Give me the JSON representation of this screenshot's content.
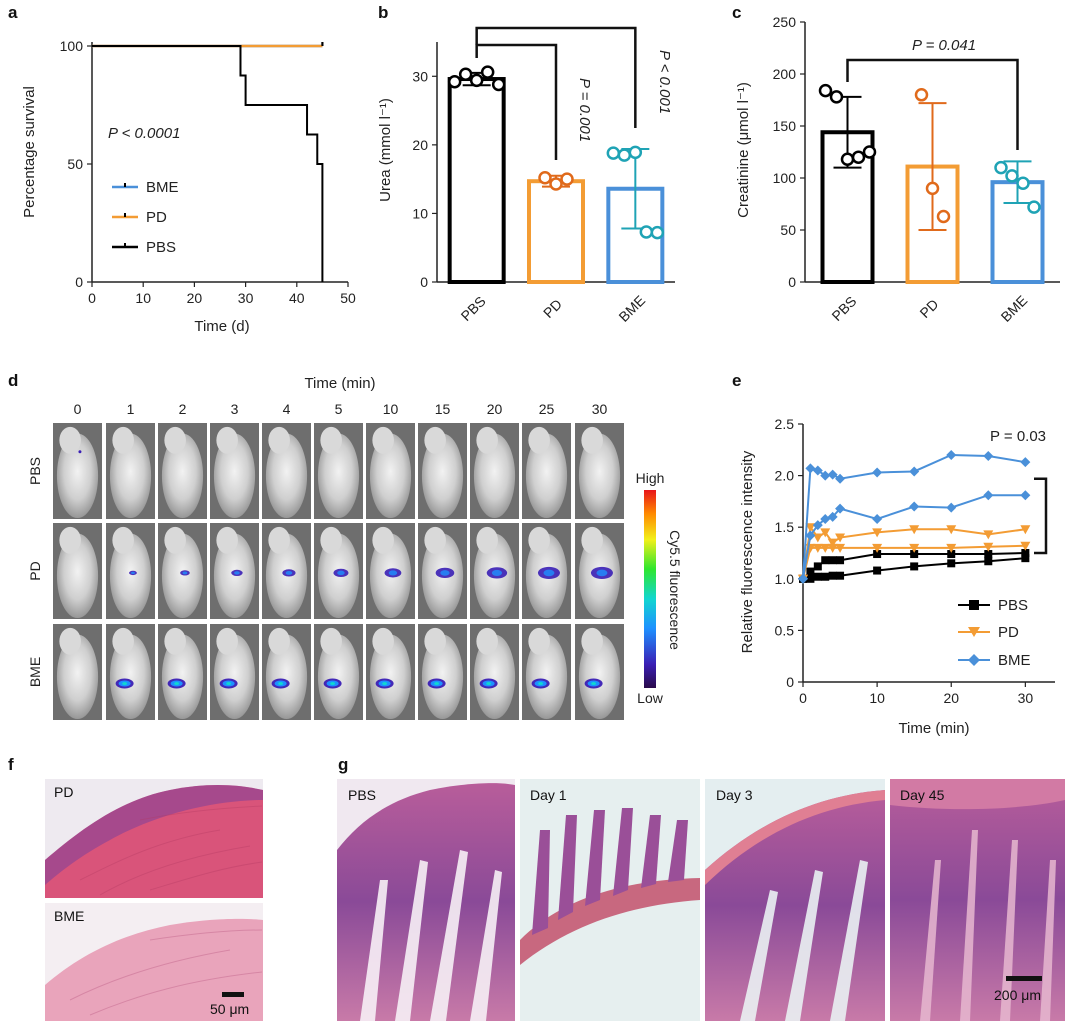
{
  "panels": {
    "a": "a",
    "b": "b",
    "c": "c",
    "d": "d",
    "e": "e",
    "f": "f",
    "g": "g"
  },
  "colors": {
    "PBS": "#000000",
    "PD": "#f39c34",
    "BME": "#4a90d9",
    "BME_dots": "#1fa3b5",
    "PD_dots": "#e06a1b"
  },
  "chart_data": [
    {
      "panel": "a",
      "type": "line",
      "title": "",
      "xlabel": "Time (d)",
      "ylabel": "Percentage survival",
      "xlim": [
        0,
        50
      ],
      "ylim": [
        0,
        100
      ],
      "xticks": [
        "0",
        "10",
        "20",
        "30",
        "40",
        "50"
      ],
      "yticks": [
        "0",
        "50",
        "100"
      ],
      "annotation": "P < 0.0001",
      "legend": [
        "BME",
        "PD",
        "PBS"
      ],
      "series": [
        {
          "name": "BME",
          "x": [
            0,
            45
          ],
          "y": [
            100,
            100
          ],
          "censor_x": 45
        },
        {
          "name": "PD",
          "x": [
            0,
            45
          ],
          "y": [
            100,
            100
          ],
          "censor_x": 45
        },
        {
          "name": "PBS",
          "x": [
            0,
            29,
            29,
            30,
            30,
            42,
            42,
            44,
            44,
            45,
            45
          ],
          "y": [
            100,
            100,
            87.5,
            87.5,
            75,
            75,
            62.5,
            62.5,
            50,
            50,
            0
          ]
        }
      ]
    },
    {
      "panel": "b",
      "type": "bar",
      "title": "",
      "xlabel": "",
      "ylabel": "Urea (mmol l⁻¹)",
      "ylim": [
        0,
        35
      ],
      "yticks": [
        "0",
        "10",
        "20",
        "30"
      ],
      "categories": [
        "PBS",
        "PD",
        "BME"
      ],
      "values": [
        29.6,
        14.7,
        13.6
      ],
      "errors": [
        0.9,
        0.8,
        5.8
      ],
      "points": [
        [
          29.2,
          30.3,
          29.4,
          30.6,
          28.8
        ],
        [
          15.2,
          14.3,
          15.0
        ],
        [
          18.8,
          18.5,
          18.9,
          7.3,
          7.2
        ]
      ],
      "annotations": [
        "P = 0.001",
        "P < 0.001"
      ]
    },
    {
      "panel": "c",
      "type": "bar",
      "title": "",
      "xlabel": "",
      "ylabel": "Creatinine (μmol l⁻¹)",
      "ylim": [
        0,
        250
      ],
      "yticks": [
        "0",
        "50",
        "100",
        "150",
        "200",
        "250"
      ],
      "categories": [
        "PBS",
        "PD",
        "BME"
      ],
      "values": [
        144,
        111,
        96
      ],
      "errors": [
        34,
        61,
        20
      ],
      "points": [
        [
          184,
          178,
          118,
          120,
          125
        ],
        [
          180,
          90,
          63
        ],
        [
          110,
          102,
          95,
          72
        ]
      ],
      "annotations": [
        "P = 0.041"
      ]
    },
    {
      "panel": "e",
      "type": "line",
      "title": "",
      "xlabel": "Time (min)",
      "ylabel": "Relative fluorescence intensity",
      "xlim": [
        0,
        34
      ],
      "ylim": [
        0,
        2.5
      ],
      "xticks": [
        "0",
        "10",
        "20",
        "30"
      ],
      "yticks": [
        "0",
        "0.5",
        "1.0",
        "1.5",
        "2.0",
        "2.5"
      ],
      "annotation": "P = 0.03",
      "legend": [
        "PBS",
        "PD",
        "BME"
      ],
      "x": [
        0,
        1,
        2,
        3,
        4,
        5,
        10,
        15,
        20,
        25,
        30
      ],
      "series": [
        {
          "name": "PBS",
          "values": [
            1.0,
            1.0,
            1.02,
            1.02,
            1.03,
            1.03,
            1.08,
            1.12,
            1.15,
            1.17,
            1.2
          ]
        },
        {
          "name": "PBS",
          "values": [
            1.0,
            1.07,
            1.12,
            1.18,
            1.18,
            1.18,
            1.24,
            1.24,
            1.24,
            1.24,
            1.25
          ]
        },
        {
          "name": "PD",
          "values": [
            1.0,
            1.3,
            1.3,
            1.3,
            1.3,
            1.3,
            1.3,
            1.3,
            1.3,
            1.31,
            1.32
          ]
        },
        {
          "name": "PD",
          "values": [
            1.0,
            1.5,
            1.4,
            1.45,
            1.35,
            1.4,
            1.45,
            1.48,
            1.48,
            1.43,
            1.48
          ]
        },
        {
          "name": "BME",
          "values": [
            1.0,
            1.42,
            1.52,
            1.58,
            1.6,
            1.68,
            1.58,
            1.7,
            1.69,
            1.81,
            1.81
          ]
        },
        {
          "name": "BME",
          "values": [
            1.0,
            2.07,
            2.05,
            2.0,
            2.01,
            1.97,
            2.03,
            2.04,
            2.2,
            2.19,
            2.13
          ]
        }
      ]
    }
  ],
  "imaging": {
    "time_title": "Time (min)",
    "timepoints": [
      "0",
      "1",
      "2",
      "3",
      "4",
      "5",
      "10",
      "15",
      "20",
      "25",
      "30"
    ],
    "rows": [
      "PBS",
      "PD",
      "BME"
    ],
    "colorbar_high": "High",
    "colorbar_low": "Low",
    "colorbar_label": "Cy5.5 fluorescence"
  },
  "histology_f": {
    "top_label": "PD",
    "bottom_label": "BME",
    "scale": "50 μm"
  },
  "histology_g": {
    "labels": [
      "PBS",
      "Day 1",
      "Day 3",
      "Day 45"
    ],
    "scale": "200 μm"
  }
}
